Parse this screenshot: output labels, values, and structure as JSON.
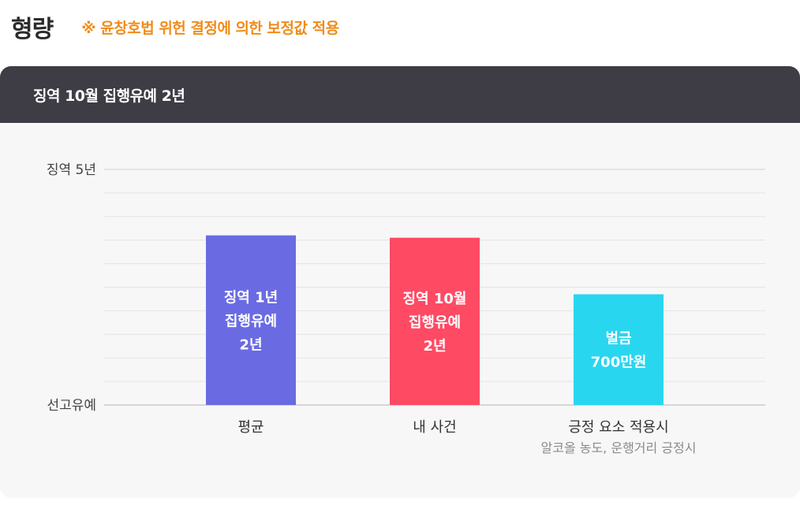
{
  "page": {
    "title": "형량",
    "note": "※ 윤창호법 위헌 결정에 의한 보정값 적용"
  },
  "card": {
    "header_title": "징역 10월 집행유예 2년"
  },
  "chart_data": {
    "type": "bar",
    "y_axis": {
      "top_label": "징역 5년",
      "bottom_label": "선고유예",
      "range": [
        0,
        10
      ],
      "gridlines": 10
    },
    "categories": [
      {
        "label": "평균",
        "sublabel": ""
      },
      {
        "label": "내 사건",
        "sublabel": ""
      },
      {
        "label": "긍정 요소 적용시",
        "sublabel": "알코올 농도, 운행거리 긍정시"
      }
    ],
    "values": [
      7.2,
      7.1,
      4.7
    ],
    "bar_labels": [
      [
        "징역 1년",
        "집행유예",
        "2년"
      ],
      [
        "징역 10월",
        "집행유예",
        "2년"
      ],
      [
        "벌금",
        "700만원"
      ]
    ],
    "colors": [
      "#6a6be3",
      "#ff4a64",
      "#29d6f0"
    ],
    "grid_color": "#e3e3e3",
    "axis_color": "#d6d6d6",
    "legend": "none"
  }
}
